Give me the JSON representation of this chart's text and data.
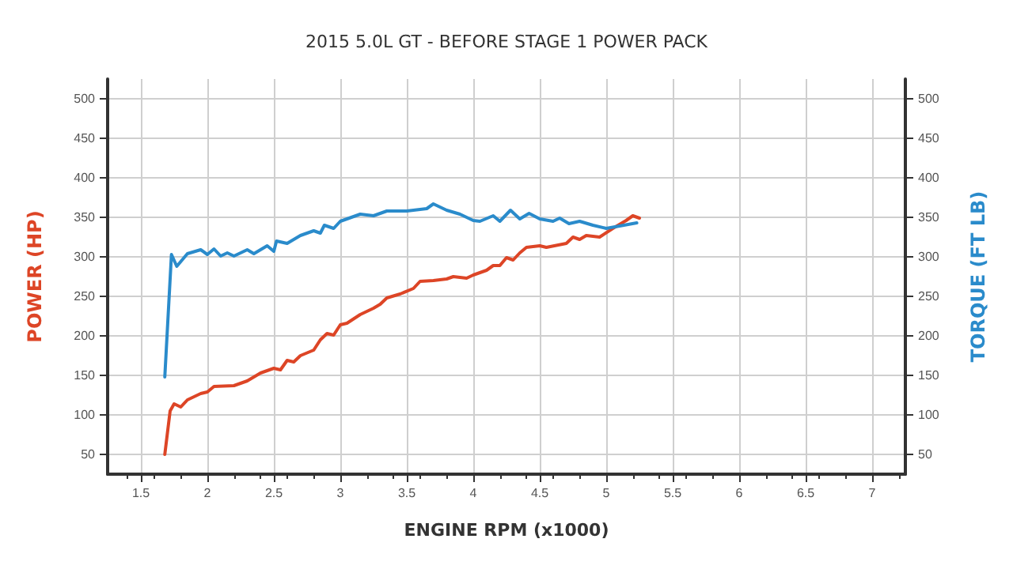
{
  "chart_data": {
    "type": "line",
    "title": "2015 5.0L GT - BEFORE STAGE 1 POWER PACK",
    "xlabel": "ENGINE RPM (x1000)",
    "ylabel": "POWER (HP)",
    "y2label": "TORQUE (FT LB)",
    "xlim": [
      1.25,
      7.25
    ],
    "xticks": [
      1.5,
      2,
      2.5,
      3,
      3.5,
      4,
      4.5,
      5,
      5.5,
      6,
      6.5,
      7
    ],
    "ylim": [
      25,
      525
    ],
    "yticks": [
      50,
      100,
      150,
      200,
      250,
      300,
      350,
      400,
      450,
      500
    ],
    "y2lim": [
      25,
      525
    ],
    "y2ticks": [
      50,
      100,
      150,
      200,
      250,
      300,
      350,
      400,
      450,
      500
    ],
    "grid": true,
    "marker": "none",
    "line_style": "solid",
    "series": [
      {
        "color": "#dd4526",
        "x": [
          1.68,
          1.72,
          1.75,
          1.8,
          1.85,
          1.95,
          2.0,
          2.05,
          2.2,
          2.3,
          2.4,
          2.5,
          2.55,
          2.6,
          2.65,
          2.7,
          2.8,
          2.85,
          2.9,
          2.95,
          3.0,
          3.05,
          3.15,
          3.25,
          3.3,
          3.35,
          3.45,
          3.55,
          3.6,
          3.7,
          3.8,
          3.85,
          3.95,
          4.0,
          4.1,
          4.15,
          4.2,
          4.25,
          4.3,
          4.35,
          4.4,
          4.5,
          4.55,
          4.7,
          4.75,
          4.8,
          4.85,
          4.95,
          5.05,
          5.15,
          5.2,
          5.25
        ],
        "values": [
          50,
          105,
          114,
          110,
          119,
          127,
          129,
          136,
          137,
          143,
          153,
          159,
          157,
          169,
          167,
          175,
          182,
          195,
          203,
          201,
          214,
          216,
          227,
          235,
          240,
          248,
          253,
          260,
          269,
          270,
          272,
          275,
          273,
          277,
          283,
          289,
          289,
          299,
          296,
          305,
          312,
          314,
          312,
          317,
          325,
          322,
          327,
          325,
          336,
          346,
          352,
          349
        ]
      },
      {
        "color": "#2a8bcb",
        "axis": "y2",
        "x": [
          1.68,
          1.73,
          1.77,
          1.85,
          1.95,
          2.0,
          2.05,
          2.1,
          2.15,
          2.2,
          2.3,
          2.35,
          2.45,
          2.5,
          2.52,
          2.6,
          2.7,
          2.8,
          2.85,
          2.88,
          2.95,
          3.0,
          3.15,
          3.25,
          3.35,
          3.5,
          3.65,
          3.7,
          3.8,
          3.9,
          4.0,
          4.05,
          4.15,
          4.2,
          4.28,
          4.35,
          4.42,
          4.5,
          4.6,
          4.65,
          4.72,
          4.8,
          4.9,
          5.0,
          5.1,
          5.23
        ],
        "values": [
          148,
          303,
          288,
          304,
          309,
          303,
          310,
          301,
          305,
          301,
          309,
          304,
          314,
          307,
          320,
          317,
          327,
          333,
          330,
          340,
          336,
          345,
          354,
          352,
          358,
          358,
          361,
          367,
          359,
          354,
          346,
          345,
          352,
          345,
          359,
          348,
          355,
          348,
          345,
          349,
          342,
          345,
          340,
          336,
          339,
          343
        ]
      }
    ]
  }
}
